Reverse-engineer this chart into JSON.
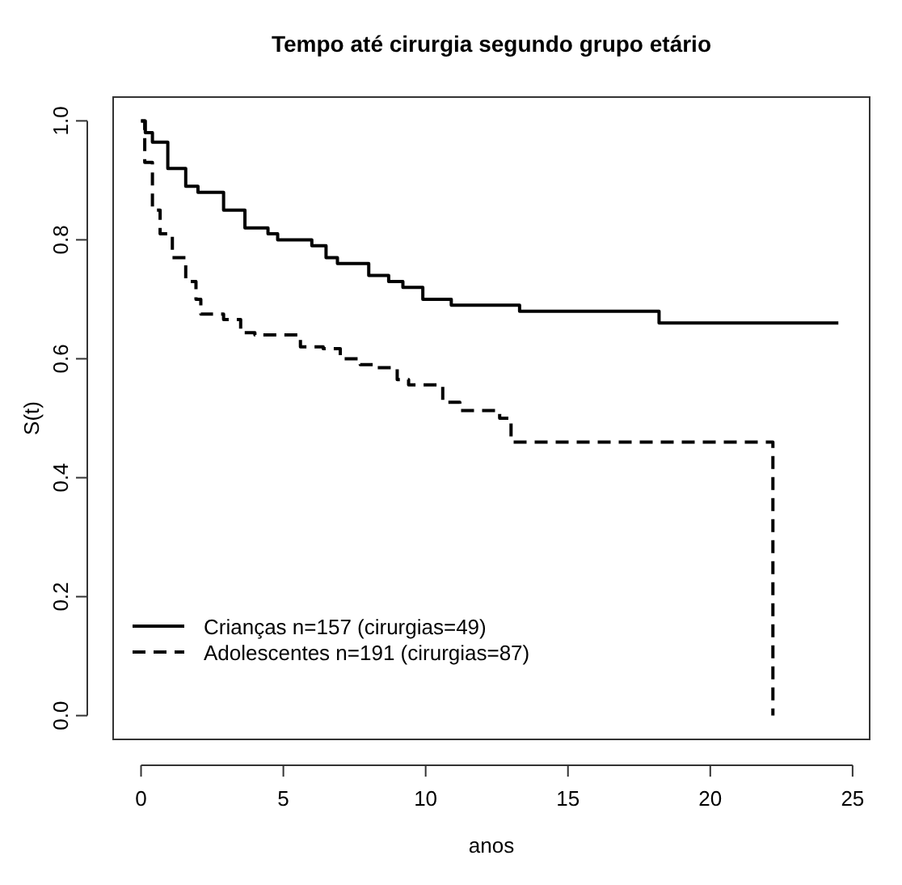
{
  "chart_data": {
    "type": "step",
    "title": "Tempo até cirurgia segundo grupo etário",
    "xlabel": "anos",
    "ylabel": "S(t)",
    "xlim": [
      -0.98,
      25.6
    ],
    "ylim": [
      -0.04,
      1.04
    ],
    "xticks": [
      0,
      5,
      10,
      15,
      20,
      25
    ],
    "yticks": [
      {
        "value": 0,
        "label": "0.0"
      },
      {
        "value": 0.2,
        "label": "0.2"
      },
      {
        "value": 0.4,
        "label": "0.4"
      },
      {
        "value": 0.6,
        "label": "0.6"
      },
      {
        "value": 0.8,
        "label": "0.8"
      },
      {
        "value": 1,
        "label": "1.0"
      }
    ],
    "grid": false,
    "legend": "bottom left",
    "series": [
      {
        "name": "Crianças n=157 (cirurgias=49)",
        "color": "#000000",
        "line_style": "solid",
        "x": [
          0,
          0.15,
          0.4,
          0.94,
          1.57,
          2.0,
          2.9,
          3.65,
          4.46,
          4.8,
          6.0,
          6.5,
          6.9,
          8.0,
          8.7,
          9.2,
          9.9,
          10.9,
          13.3,
          18.2,
          24.5
        ],
        "values": [
          1.0,
          0.98,
          0.964,
          0.92,
          0.89,
          0.88,
          0.85,
          0.82,
          0.81,
          0.8,
          0.79,
          0.77,
          0.76,
          0.74,
          0.73,
          0.72,
          0.7,
          0.69,
          0.68,
          0.66,
          0.66
        ]
      },
      {
        "name": "Adolescentes n=191 (cirurgias=87)",
        "color": "#000000",
        "line_style": "dashed",
        "x": [
          0,
          0.13,
          0.4,
          0.67,
          1.1,
          1.57,
          1.93,
          2.1,
          2.9,
          3.5,
          4.0,
          5.6,
          6.4,
          7.0,
          7.7,
          8.2,
          9.0,
          9.4,
          10.6,
          11.2,
          12.6,
          13.0,
          22.2
        ],
        "values": [
          1.0,
          0.93,
          0.85,
          0.81,
          0.77,
          0.73,
          0.7,
          0.675,
          0.666,
          0.644,
          0.64,
          0.62,
          0.617,
          0.6,
          0.59,
          0.585,
          0.565,
          0.556,
          0.527,
          0.513,
          0.5,
          0.46,
          0.0
        ]
      }
    ]
  }
}
